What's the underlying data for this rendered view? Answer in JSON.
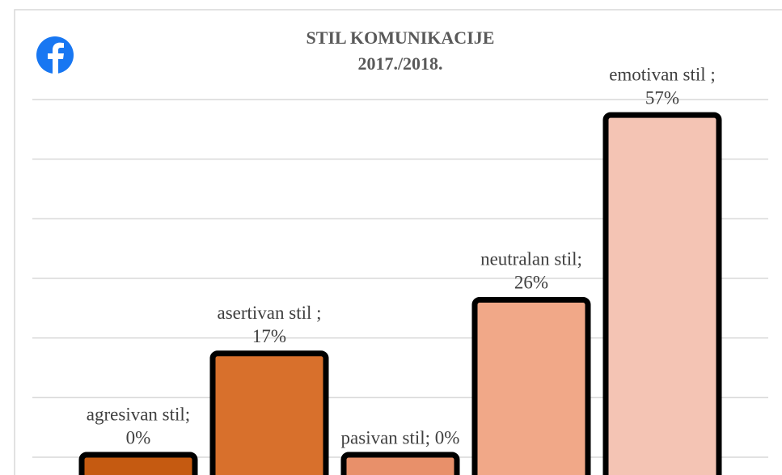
{
  "chart_data": {
    "type": "bar",
    "title": [
      "STIL KOMUNIKACIJE",
      "2017./2018."
    ],
    "values": [
      0,
      17,
      0,
      26,
      57
    ],
    "value_labels": [
      [
        "agresivan stil;",
        "0%"
      ],
      [
        "asertivan stil ;",
        "17%"
      ],
      [
        "pasivan stil; 0%"
      ],
      [
        "neutralan stil;",
        "26%"
      ],
      [
        "emotivan stil ;",
        "57%"
      ]
    ],
    "colors": [
      "#c55a11",
      "#d8702c",
      "#e8906a",
      "#f1a888",
      "#f4c4b4"
    ],
    "ylim": [
      0,
      60
    ],
    "yticks": [
      0,
      10,
      20,
      30,
      40,
      50,
      60
    ],
    "grid": true
  }
}
